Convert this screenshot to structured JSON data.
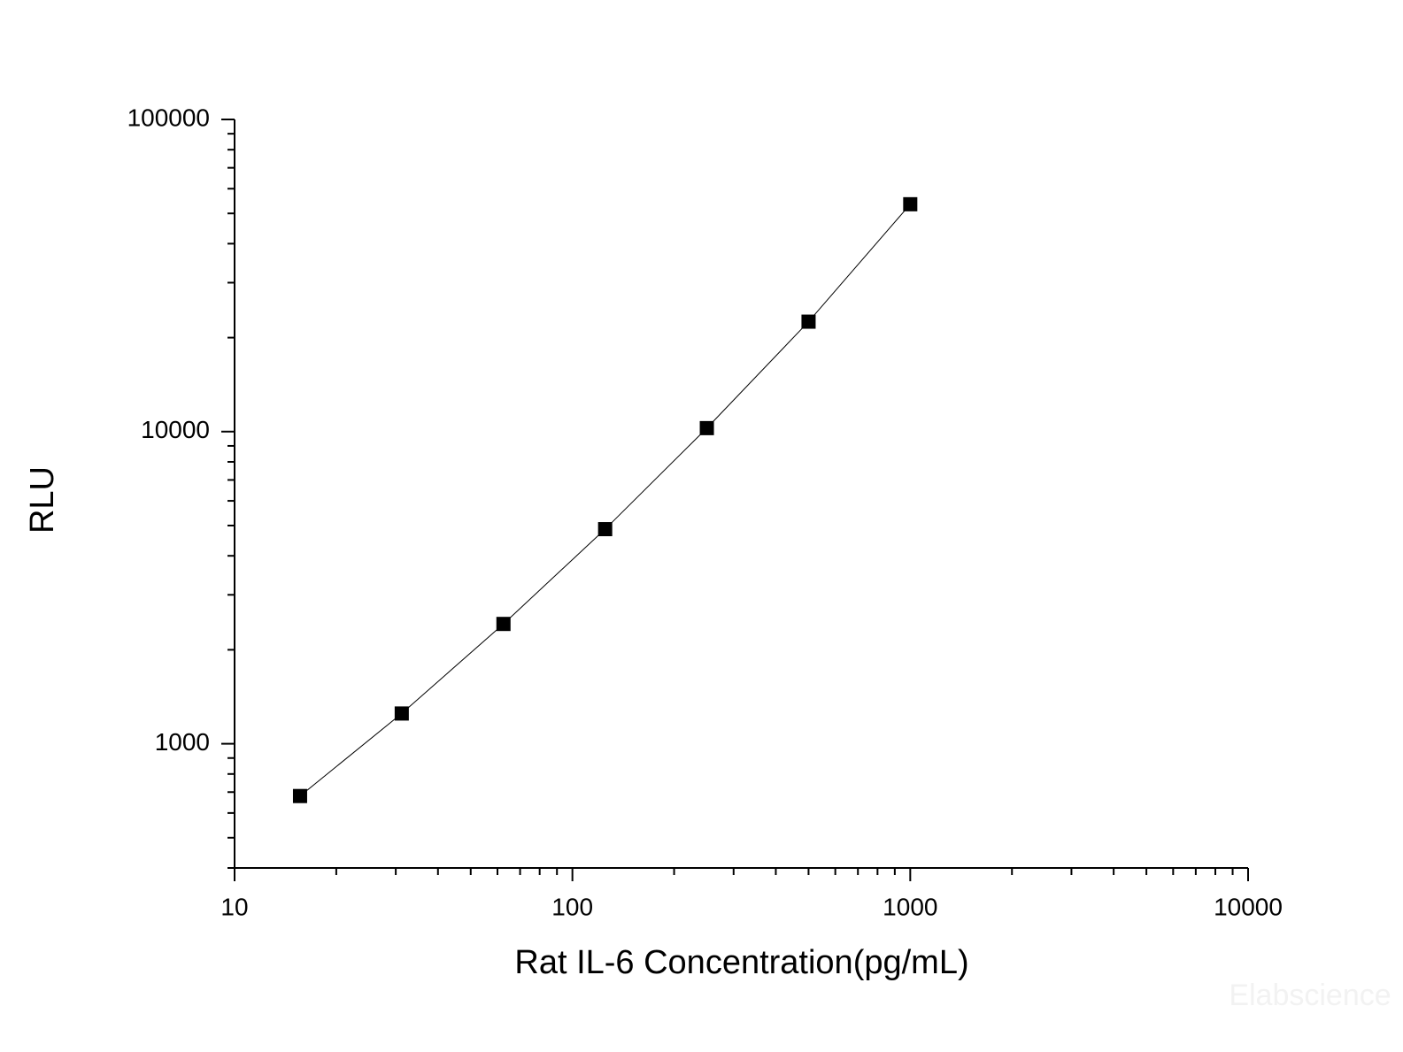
{
  "chart_data": {
    "type": "scatter",
    "xlabel": "Rat IL-6 Concentration(pg/mL)",
    "ylabel": "RLU",
    "x": [
      15.625,
      31.25,
      62.5,
      125,
      250,
      500,
      1000
    ],
    "series": [
      {
        "color": "#000000",
        "values": [
          680,
          1250,
          2420,
          4870,
          10260,
          22500,
          53500
        ]
      }
    ],
    "xscale": "log",
    "yscale": "log",
    "xlim": [
      10,
      10000
    ],
    "ylim": [
      400,
      100000
    ],
    "xticks": [
      10,
      100,
      1000,
      10000
    ],
    "yticks": [
      1000,
      10000,
      100000
    ],
    "connect_points": true,
    "watermark": "Elabscience"
  }
}
